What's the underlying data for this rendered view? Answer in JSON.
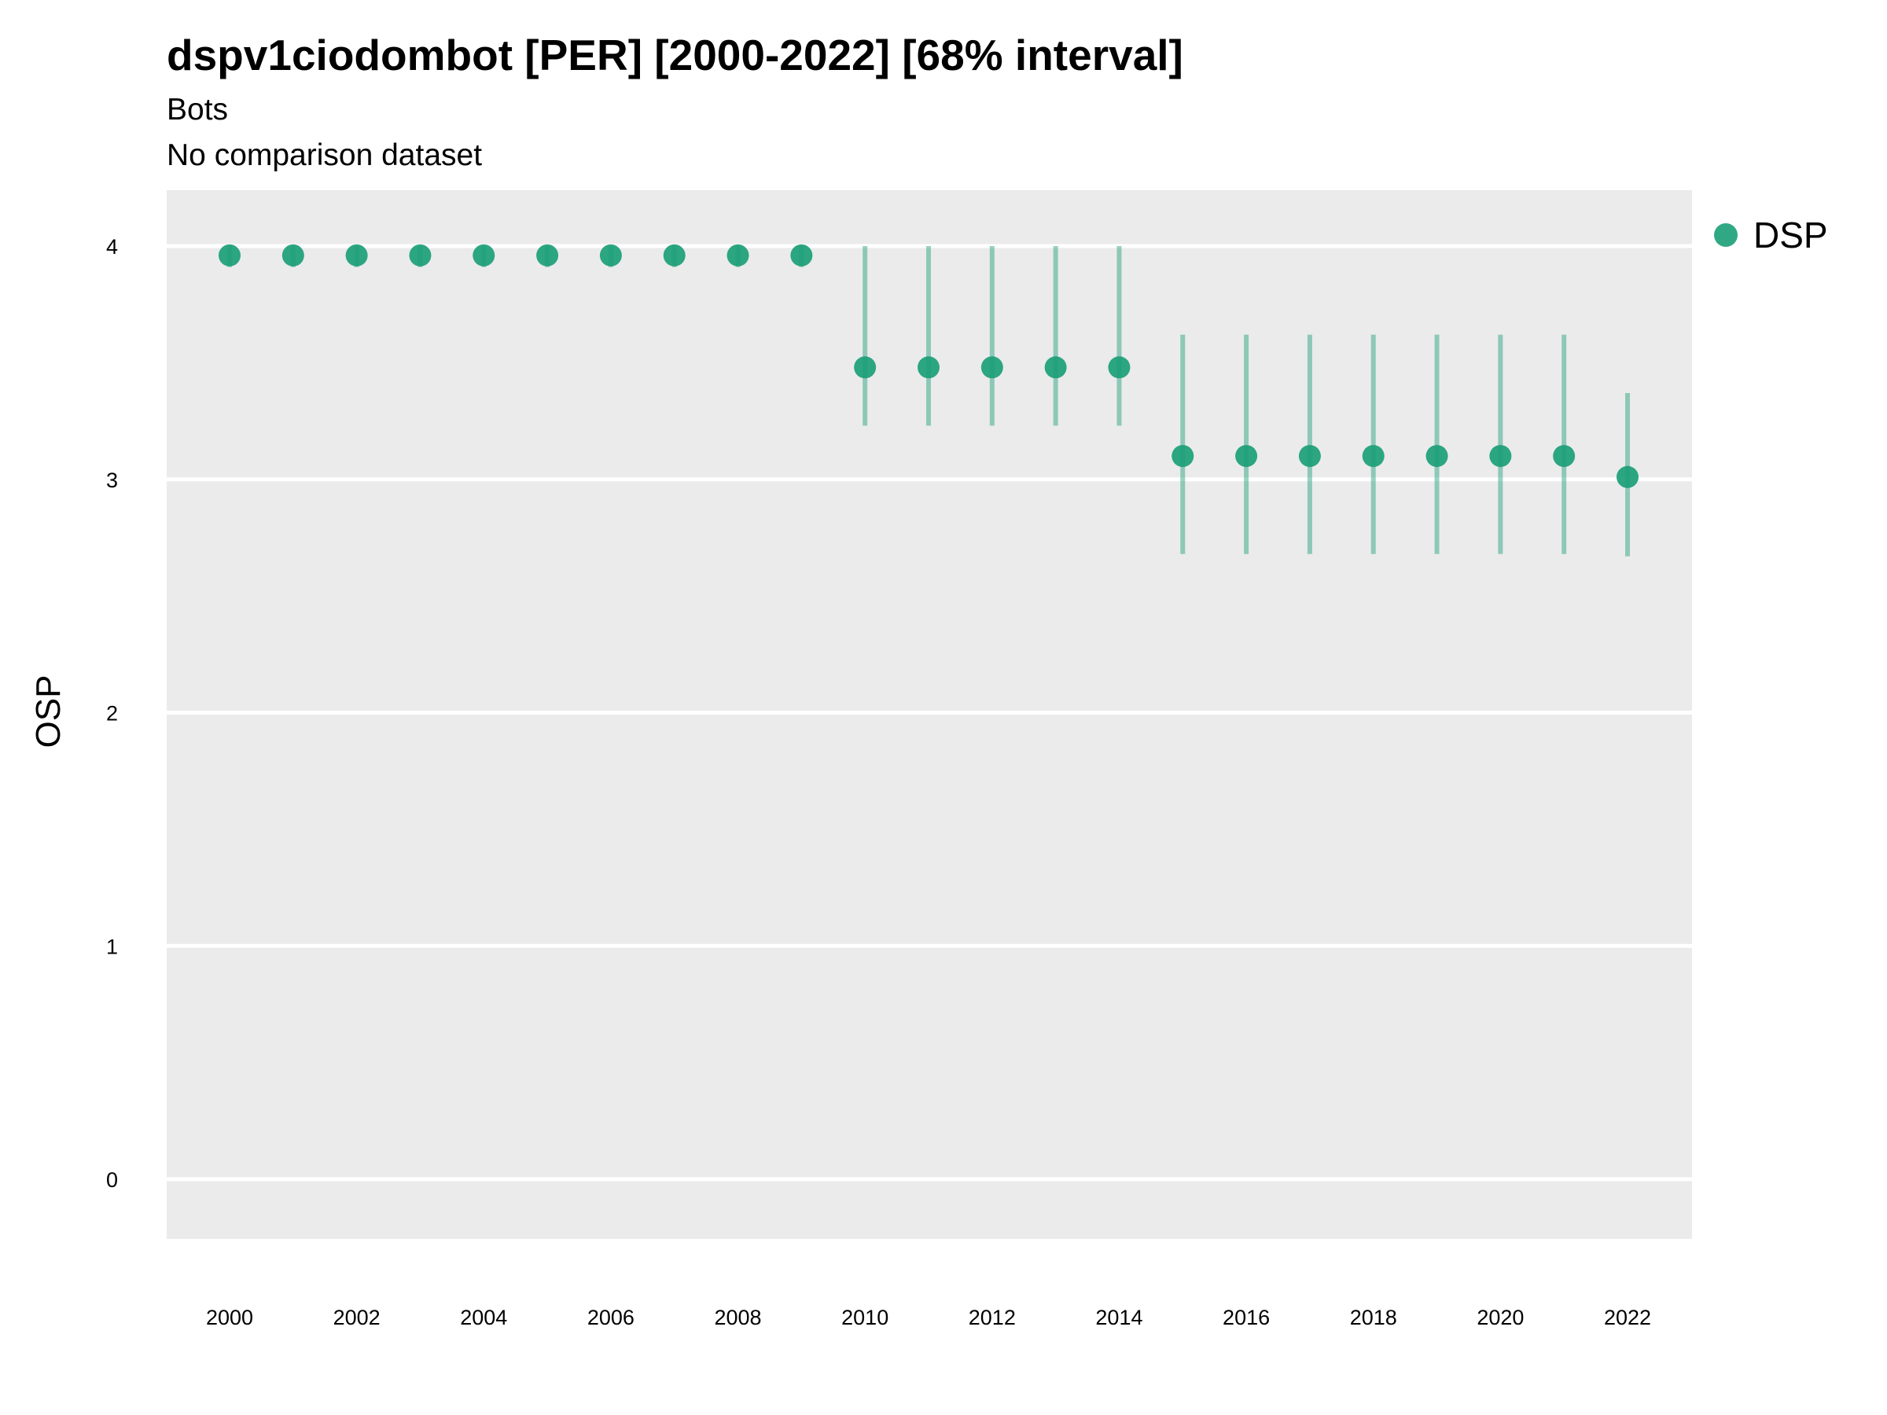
{
  "chart_data": {
    "type": "scatter",
    "title": "dspv1ciodombot [PER] [2000-2022] [68% interval]",
    "subtitle": [
      "Bots",
      "No comparison dataset"
    ],
    "xlabel": "",
    "ylabel": "OSP",
    "ylim": [
      -0.25,
      4.25
    ],
    "xlim": [
      1999,
      2023
    ],
    "y_ticks": [
      "0",
      "1",
      "2",
      "3",
      "4"
    ],
    "x_ticks": [
      "2000",
      "2002",
      "2004",
      "2006",
      "2008",
      "2010",
      "2012",
      "2014",
      "2016",
      "2018",
      "2020",
      "2022"
    ],
    "legend": {
      "position": "right",
      "entries": [
        "DSP"
      ]
    },
    "grid": true,
    "colors": {
      "series": "#1b9e77",
      "panel": "#ebebeb",
      "grid": "#ffffff"
    },
    "series": [
      {
        "name": "DSP",
        "x": [
          2000,
          2001,
          2002,
          2003,
          2004,
          2005,
          2006,
          2007,
          2008,
          2009,
          2010,
          2011,
          2012,
          2013,
          2014,
          2015,
          2016,
          2017,
          2018,
          2019,
          2020,
          2021,
          2022
        ],
        "y": [
          3.96,
          3.96,
          3.96,
          3.96,
          3.96,
          3.96,
          3.96,
          3.96,
          3.96,
          3.96,
          3.48,
          3.48,
          3.48,
          3.48,
          3.48,
          3.1,
          3.1,
          3.1,
          3.1,
          3.1,
          3.1,
          3.1,
          3.01
        ],
        "lower": [
          3.91,
          3.91,
          3.91,
          3.91,
          3.91,
          3.91,
          3.91,
          3.91,
          3.91,
          3.91,
          3.23,
          3.23,
          3.23,
          3.23,
          3.23,
          2.68,
          2.68,
          2.68,
          2.68,
          2.68,
          2.68,
          2.68,
          2.67
        ],
        "upper": [
          4.0,
          4.0,
          4.0,
          4.0,
          4.0,
          4.0,
          4.0,
          4.0,
          4.0,
          4.0,
          4.0,
          4.0,
          4.0,
          4.0,
          4.0,
          3.62,
          3.62,
          3.62,
          3.62,
          3.62,
          3.62,
          3.62,
          3.37
        ]
      }
    ]
  }
}
